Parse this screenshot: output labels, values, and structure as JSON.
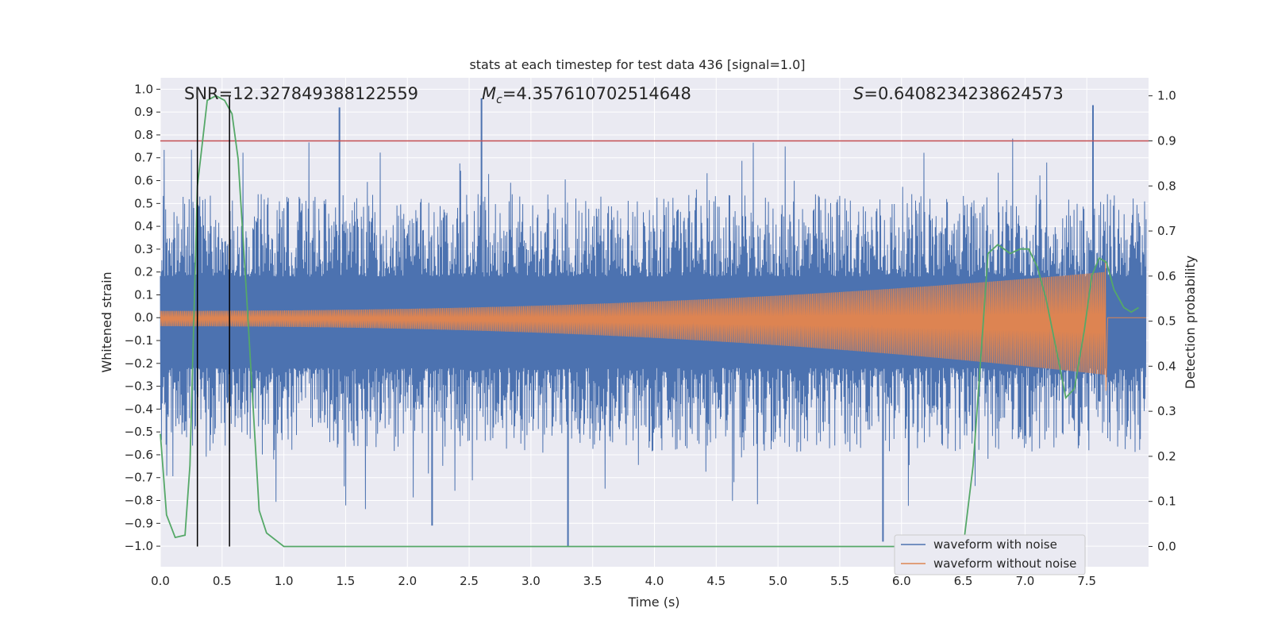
{
  "chart_data": {
    "type": "line",
    "title": "stats at each timestep for test data 436 [signal=1.0]",
    "xlabel": "Time (s)",
    "ylabel": "Whitened strain",
    "y2label": "Detection probability",
    "xlim": [
      0.0,
      8.0
    ],
    "ylim": [
      -1.09,
      1.05
    ],
    "y2lim": [
      -0.045,
      1.04
    ],
    "grid": true,
    "x_ticks": [
      "0.0",
      "0.5",
      "1.0",
      "1.5",
      "2.0",
      "2.5",
      "3.0",
      "3.5",
      "4.0",
      "4.5",
      "5.0",
      "5.5",
      "6.0",
      "6.5",
      "7.0",
      "7.5"
    ],
    "y_ticks": [
      "1.0",
      "0.9",
      "0.8",
      "0.7",
      "0.6",
      "0.5",
      "0.4",
      "0.3",
      "0.2",
      "0.1",
      "0.0",
      "−0.1",
      "−0.2",
      "−0.3",
      "−0.4",
      "−0.5",
      "−0.6",
      "−0.7",
      "−0.8",
      "−0.9",
      "−1.0"
    ],
    "y2_ticks": [
      "1.0",
      "0.9",
      "0.8",
      "0.7",
      "0.6",
      "0.5",
      "0.4",
      "0.3",
      "0.2",
      "0.1",
      "0.0"
    ],
    "annotations": {
      "snr": "SNR=12.327849388122559",
      "mc_symbol": "M",
      "mc_sub": "c",
      "mc_value": "=4.357610702514648",
      "s_symbol": "S",
      "s_value": "=0.6408234238624573"
    },
    "threshold_line": {
      "y2": 0.9,
      "color": "#c44e52"
    },
    "vertical_lines": [
      0.3,
      0.56
    ],
    "series": [
      {
        "name": "waveform with noise",
        "color": "#4c72b0",
        "envelope_top": 0.55,
        "envelope_bottom": -0.6,
        "spikes": [
          0.92,
          0.96,
          0.93,
          -1.0,
          -0.98,
          -0.91
        ]
      },
      {
        "name": "waveform without noise",
        "color": "#dd8452",
        "amplitude_start": 0.03,
        "amplitude_end": 0.2,
        "merger_time": 7.65,
        "merger_peak": 0.25,
        "merger_trough": -0.32
      },
      {
        "name": "detection probability",
        "color": "#55a868",
        "axis": "right",
        "x": [
          0.0,
          0.05,
          0.12,
          0.2,
          0.24,
          0.3,
          0.38,
          0.45,
          0.52,
          0.58,
          0.63,
          0.7,
          0.8,
          0.86,
          1.0,
          6.5,
          6.58,
          6.65,
          6.7,
          6.78,
          6.88,
          6.96,
          7.03,
          7.1,
          7.17,
          7.28,
          7.33,
          7.4,
          7.48,
          7.54,
          7.6,
          7.66,
          7.72,
          7.8,
          7.86,
          7.92
        ],
        "y": [
          0.25,
          0.07,
          0.02,
          0.025,
          0.18,
          0.8,
          0.99,
          1.0,
          0.99,
          0.96,
          0.86,
          0.55,
          0.08,
          0.03,
          0.0,
          0.0,
          0.18,
          0.45,
          0.65,
          0.67,
          0.65,
          0.66,
          0.66,
          0.62,
          0.55,
          0.4,
          0.33,
          0.35,
          0.48,
          0.6,
          0.64,
          0.63,
          0.57,
          0.53,
          0.52,
          0.53
        ]
      }
    ]
  }
}
